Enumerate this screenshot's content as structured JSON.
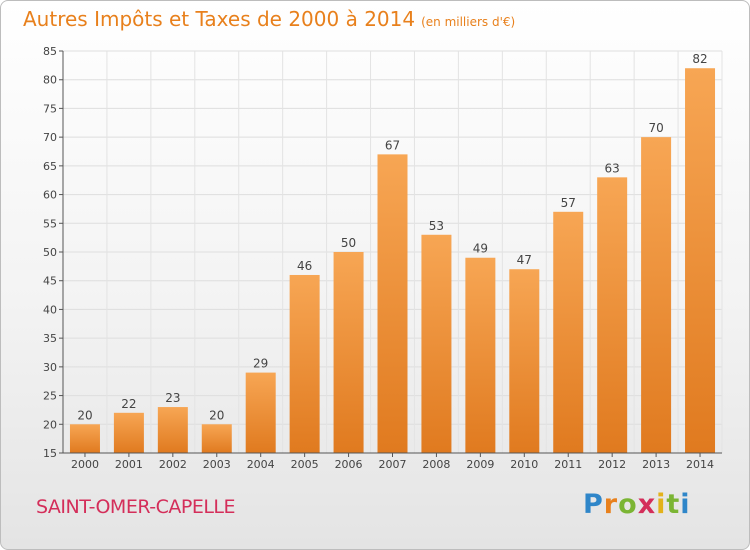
{
  "title": "Autres Impôts et Taxes de 2000 à 2014",
  "unit": "(en milliers d'€)",
  "place": "SAINT-OMER-CAPELLE",
  "logo": {
    "letters": [
      {
        "char": "P",
        "color": "#2f86c9"
      },
      {
        "char": "r",
        "color": "#e8801c"
      },
      {
        "char": "o",
        "color": "#7bb534"
      },
      {
        "char": "x",
        "color": "#d42e5a"
      },
      {
        "char": "i",
        "color": "#e3b21b"
      },
      {
        "char": "t",
        "color": "#7bb534"
      },
      {
        "char": "i",
        "color": "#2f86c9"
      }
    ]
  },
  "chart_data": {
    "type": "bar",
    "categories": [
      "2000",
      "2001",
      "2002",
      "2003",
      "2004",
      "2005",
      "2006",
      "2007",
      "2008",
      "2009",
      "2010",
      "2011",
      "2012",
      "2013",
      "2014"
    ],
    "values": [
      20,
      22,
      23,
      20,
      29,
      46,
      50,
      67,
      53,
      49,
      47,
      57,
      63,
      70,
      82
    ],
    "ylim": [
      15,
      85
    ],
    "yticks": [
      15,
      20,
      25,
      30,
      35,
      40,
      45,
      50,
      55,
      60,
      65,
      70,
      75,
      80,
      85
    ],
    "grid": true,
    "bar_color_top": "#f7a654",
    "bar_color_bottom": "#e07a1f"
  }
}
